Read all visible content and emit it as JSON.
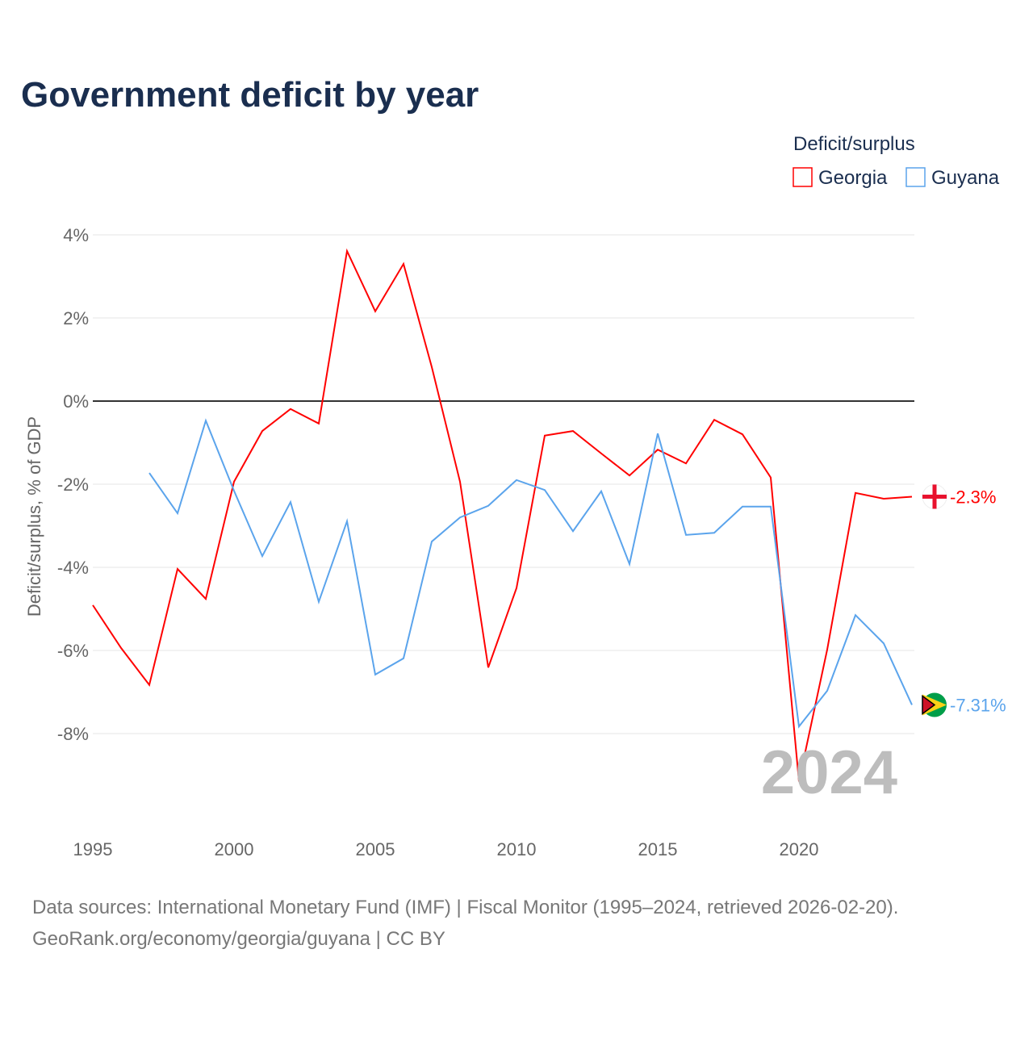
{
  "chart_data": {
    "type": "line",
    "title": "Government deficit by year",
    "ylabel": "Deficit/surplus, % of GDP",
    "xlabel": "",
    "xlim": [
      1995,
      2024
    ],
    "ylim": [
      -10,
      4.5
    ],
    "x_ticks": [
      1995,
      2000,
      2005,
      2010,
      2015,
      2020
    ],
    "y_ticks": [
      4,
      2,
      0,
      -2,
      -4,
      -6,
      -8
    ],
    "y_tick_labels": [
      "4%",
      "2%",
      "0%",
      "-2%",
      "-4%",
      "-6%",
      "-8%"
    ],
    "x_tick_labels": [
      "1995",
      "2000",
      "2005",
      "2010",
      "2015",
      "2020"
    ],
    "grid": true,
    "legend": {
      "title": "Deficit/surplus",
      "placement": "top-right"
    },
    "year_watermark": "2024",
    "series": [
      {
        "name": "Georgia",
        "color": "#ff0000",
        "end_label": "-2.3%",
        "flag": "georgia-flag",
        "x": [
          1995,
          1996,
          1997,
          1998,
          1999,
          2000,
          2001,
          2002,
          2003,
          2004,
          2005,
          2006,
          2007,
          2008,
          2009,
          2010,
          2011,
          2012,
          2013,
          2014,
          2015,
          2016,
          2017,
          2018,
          2019,
          2020,
          2021,
          2022,
          2023,
          2024
        ],
        "values": [
          -4.91,
          -5.94,
          -6.83,
          -4.04,
          -4.76,
          -1.94,
          -0.72,
          -0.19,
          -0.54,
          3.61,
          2.16,
          3.3,
          0.82,
          -1.94,
          -6.41,
          -4.5,
          -0.83,
          -0.72,
          -1.26,
          -1.79,
          -1.17,
          -1.5,
          -0.45,
          -0.8,
          -1.84,
          -9.15,
          -5.98,
          -2.21,
          -2.35,
          -2.3
        ]
      },
      {
        "name": "Guyana",
        "color": "#5ba4ec",
        "end_label": "-7.31%",
        "flag": "guyana-flag",
        "x": [
          1997,
          1998,
          1999,
          2000,
          2001,
          2002,
          2003,
          2004,
          2005,
          2006,
          2007,
          2008,
          2009,
          2010,
          2011,
          2012,
          2013,
          2014,
          2015,
          2016,
          2017,
          2018,
          2019,
          2020,
          2021,
          2022,
          2023,
          2024
        ],
        "values": [
          -1.73,
          -2.7,
          -0.47,
          -2.16,
          -3.73,
          -2.43,
          -4.83,
          -2.89,
          -6.58,
          -6.19,
          -3.38,
          -2.8,
          -2.52,
          -1.9,
          -2.14,
          -3.13,
          -2.17,
          -3.92,
          -0.78,
          -3.22,
          -3.17,
          -2.54,
          -2.54,
          -7.83,
          -6.97,
          -5.15,
          -5.83,
          -7.31
        ]
      }
    ]
  },
  "footer": {
    "source": "Data sources: International Monetary Fund (IMF) | Fiscal Monitor (1995–2024, retrieved 2026-02-20).",
    "credit": "GeoRank.org/economy/georgia/guyana | CC BY"
  }
}
